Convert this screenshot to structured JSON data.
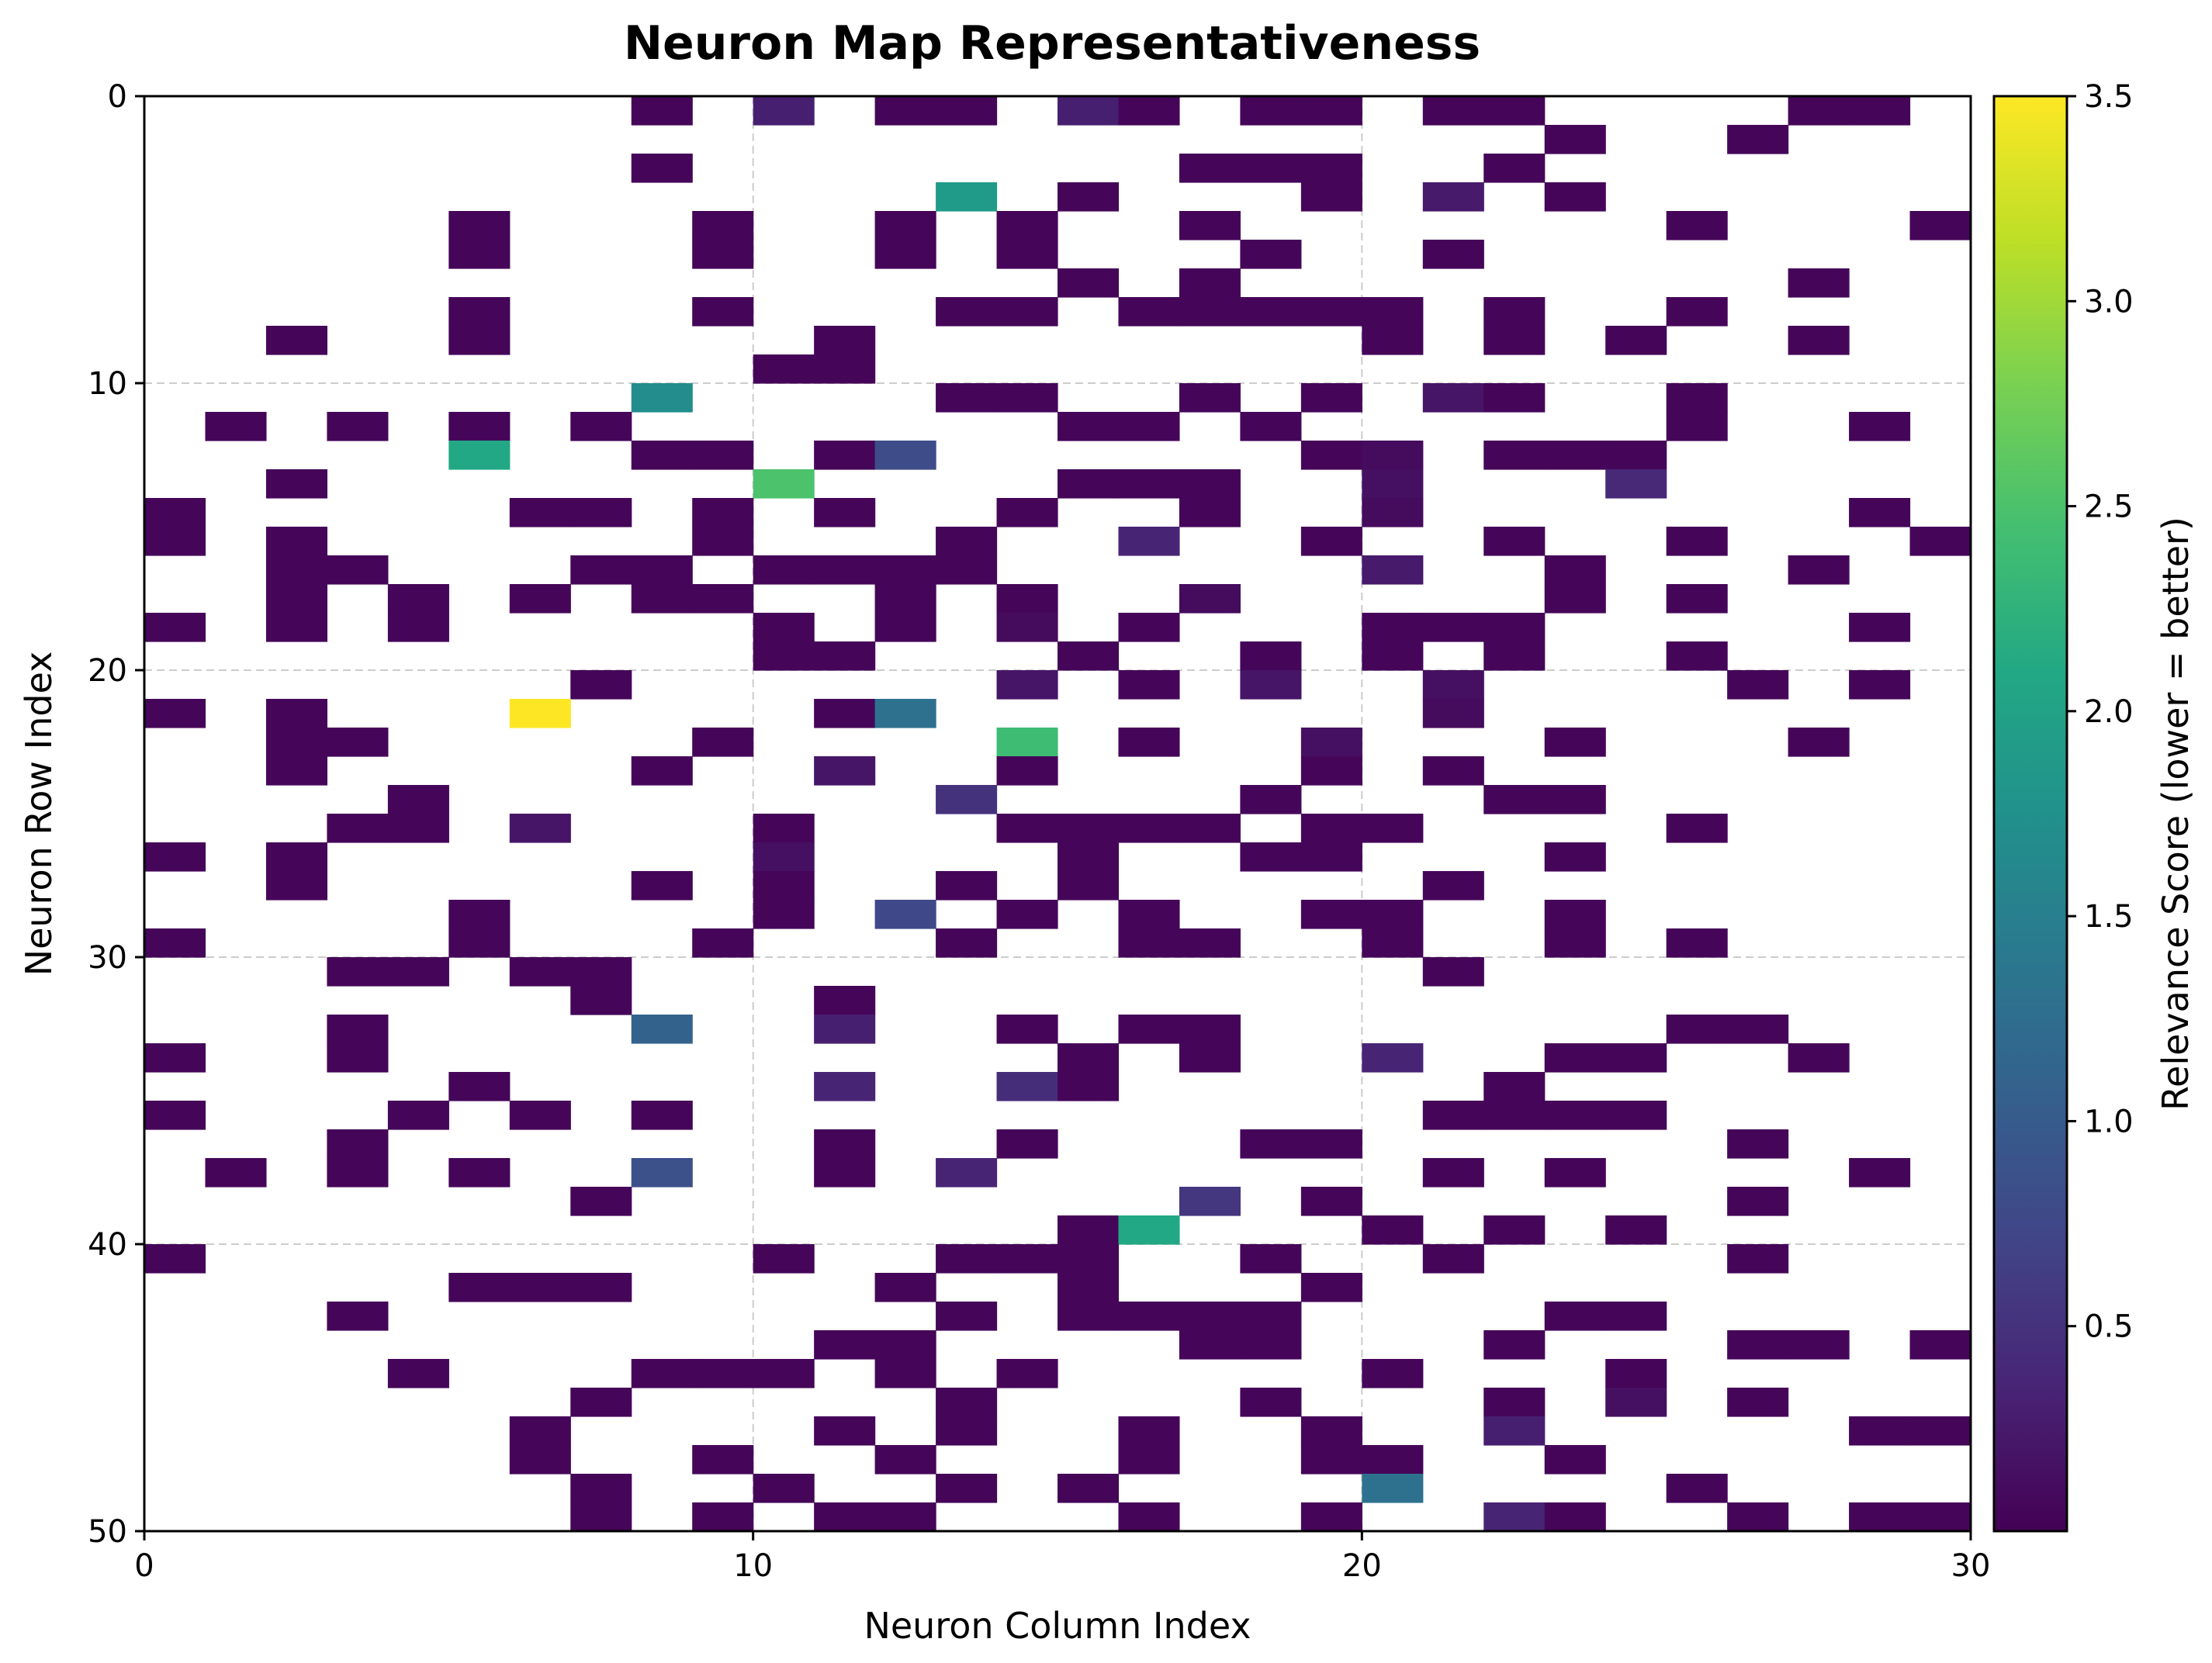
{
  "chart_data": {
    "type": "heatmap",
    "title": "Neuron Map Representativeness",
    "xlabel": "Neuron Column Index",
    "ylabel": "Neuron Row Index",
    "colorbar_label": "Relevance Score (lower = better)",
    "colormap": "viridis",
    "vmin": 0.0,
    "vmax": 3.5,
    "colorbar_ticks": [
      "0.5",
      "1.0",
      "1.5",
      "2.0",
      "2.5",
      "3.0",
      "3.5"
    ],
    "xlim": [
      0,
      30
    ],
    "ylim": [
      50,
      0
    ],
    "x_ticks": [
      "0",
      "10",
      "20",
      "30"
    ],
    "y_ticks": [
      "0",
      "10",
      "20",
      "30",
      "40",
      "50"
    ],
    "grid": true,
    "n_rows": 50,
    "n_cols": 30,
    "cells": [
      [
        0,
        8,
        0.05
      ],
      [
        0,
        10,
        0.3
      ],
      [
        0,
        12,
        0.05
      ],
      [
        0,
        13,
        0.05
      ],
      [
        0,
        15,
        0.3
      ],
      [
        0,
        16,
        0.05
      ],
      [
        0,
        18,
        0.05
      ],
      [
        0,
        19,
        0.05
      ],
      [
        0,
        21,
        0.05
      ],
      [
        0,
        22,
        0.05
      ],
      [
        0,
        27,
        0.05
      ],
      [
        0,
        28,
        0.05
      ],
      [
        1,
        23,
        0.05
      ],
      [
        1,
        26,
        0.05
      ],
      [
        2,
        8,
        0.05
      ],
      [
        2,
        17,
        0.05
      ],
      [
        2,
        18,
        0.05
      ],
      [
        2,
        19,
        0.05
      ],
      [
        2,
        22,
        0.05
      ],
      [
        3,
        13,
        1.9
      ],
      [
        3,
        15,
        0.05
      ],
      [
        3,
        19,
        0.05
      ],
      [
        3,
        21,
        0.25
      ],
      [
        3,
        23,
        0.05
      ],
      [
        4,
        5,
        0.05
      ],
      [
        4,
        9,
        0.05
      ],
      [
        4,
        12,
        0.05
      ],
      [
        4,
        14,
        0.05
      ],
      [
        4,
        17,
        0.05
      ],
      [
        4,
        25,
        0.05
      ],
      [
        4,
        29,
        0.05
      ],
      [
        5,
        5,
        0.05
      ],
      [
        5,
        9,
        0.05
      ],
      [
        5,
        12,
        0.05
      ],
      [
        5,
        14,
        0.05
      ],
      [
        5,
        18,
        0.05
      ],
      [
        5,
        21,
        0.05
      ],
      [
        6,
        15,
        0.05
      ],
      [
        6,
        17,
        0.05
      ],
      [
        6,
        27,
        0.05
      ],
      [
        7,
        5,
        0.05
      ],
      [
        7,
        9,
        0.05
      ],
      [
        7,
        13,
        0.05
      ],
      [
        7,
        14,
        0.05
      ],
      [
        7,
        16,
        0.05
      ],
      [
        7,
        17,
        0.05
      ],
      [
        7,
        18,
        0.05
      ],
      [
        7,
        19,
        0.05
      ],
      [
        7,
        20,
        0.05
      ],
      [
        7,
        22,
        0.05
      ],
      [
        7,
        25,
        0.05
      ],
      [
        8,
        2,
        0.05
      ],
      [
        8,
        5,
        0.05
      ],
      [
        8,
        11,
        0.05
      ],
      [
        8,
        20,
        0.05
      ],
      [
        8,
        22,
        0.05
      ],
      [
        8,
        24,
        0.05
      ],
      [
        8,
        27,
        0.05
      ],
      [
        9,
        10,
        0.05
      ],
      [
        9,
        11,
        0.05
      ],
      [
        10,
        8,
        1.7
      ],
      [
        10,
        13,
        0.05
      ],
      [
        10,
        14,
        0.05
      ],
      [
        10,
        17,
        0.05
      ],
      [
        10,
        19,
        0.05
      ],
      [
        10,
        21,
        0.2
      ],
      [
        10,
        22,
        0.05
      ],
      [
        10,
        25,
        0.05
      ],
      [
        11,
        1,
        0.05
      ],
      [
        11,
        3,
        0.05
      ],
      [
        11,
        5,
        0.05
      ],
      [
        11,
        7,
        0.05
      ],
      [
        11,
        15,
        0.05
      ],
      [
        11,
        16,
        0.05
      ],
      [
        11,
        18,
        0.05
      ],
      [
        11,
        25,
        0.05
      ],
      [
        11,
        28,
        0.05
      ],
      [
        12,
        5,
        2.1
      ],
      [
        12,
        8,
        0.05
      ],
      [
        12,
        9,
        0.05
      ],
      [
        12,
        11,
        0.05
      ],
      [
        12,
        12,
        0.8
      ],
      [
        12,
        19,
        0.05
      ],
      [
        12,
        20,
        0.1
      ],
      [
        12,
        22,
        0.05
      ],
      [
        12,
        23,
        0.05
      ],
      [
        12,
        24,
        0.05
      ],
      [
        13,
        2,
        0.05
      ],
      [
        13,
        10,
        2.5
      ],
      [
        13,
        15,
        0.05
      ],
      [
        13,
        16,
        0.05
      ],
      [
        13,
        17,
        0.05
      ],
      [
        13,
        20,
        0.15
      ],
      [
        13,
        24,
        0.4
      ],
      [
        14,
        0,
        0.05
      ],
      [
        14,
        6,
        0.05
      ],
      [
        14,
        7,
        0.05
      ],
      [
        14,
        9,
        0.05
      ],
      [
        14,
        11,
        0.05
      ],
      [
        14,
        14,
        0.05
      ],
      [
        14,
        17,
        0.05
      ],
      [
        14,
        20,
        0.1
      ],
      [
        14,
        28,
        0.05
      ],
      [
        15,
        0,
        0.05
      ],
      [
        15,
        2,
        0.05
      ],
      [
        15,
        9,
        0.05
      ],
      [
        15,
        13,
        0.05
      ],
      [
        15,
        16,
        0.35
      ],
      [
        15,
        19,
        0.05
      ],
      [
        15,
        22,
        0.05
      ],
      [
        15,
        25,
        0.05
      ],
      [
        15,
        29,
        0.05
      ],
      [
        16,
        2,
        0.05
      ],
      [
        16,
        3,
        0.05
      ],
      [
        16,
        7,
        0.05
      ],
      [
        16,
        8,
        0.05
      ],
      [
        16,
        10,
        0.05
      ],
      [
        16,
        11,
        0.05
      ],
      [
        16,
        12,
        0.05
      ],
      [
        16,
        13,
        0.05
      ],
      [
        16,
        20,
        0.25
      ],
      [
        16,
        23,
        0.05
      ],
      [
        16,
        27,
        0.05
      ],
      [
        17,
        2,
        0.05
      ],
      [
        17,
        4,
        0.05
      ],
      [
        17,
        6,
        0.05
      ],
      [
        17,
        8,
        0.05
      ],
      [
        17,
        9,
        0.05
      ],
      [
        17,
        12,
        0.05
      ],
      [
        17,
        14,
        0.05
      ],
      [
        17,
        17,
        0.1
      ],
      [
        17,
        23,
        0.05
      ],
      [
        17,
        25,
        0.05
      ],
      [
        18,
        0,
        0.05
      ],
      [
        18,
        2,
        0.05
      ],
      [
        18,
        4,
        0.05
      ],
      [
        18,
        10,
        0.05
      ],
      [
        18,
        12,
        0.05
      ],
      [
        18,
        14,
        0.1
      ],
      [
        18,
        16,
        0.05
      ],
      [
        18,
        20,
        0.05
      ],
      [
        18,
        21,
        0.05
      ],
      [
        18,
        22,
        0.05
      ],
      [
        18,
        28,
        0.05
      ],
      [
        19,
        10,
        0.05
      ],
      [
        19,
        11,
        0.05
      ],
      [
        19,
        15,
        0.05
      ],
      [
        19,
        18,
        0.05
      ],
      [
        19,
        20,
        0.05
      ],
      [
        19,
        22,
        0.05
      ],
      [
        19,
        25,
        0.05
      ],
      [
        20,
        7,
        0.05
      ],
      [
        20,
        14,
        0.2
      ],
      [
        20,
        16,
        0.05
      ],
      [
        20,
        18,
        0.2
      ],
      [
        20,
        21,
        0.15
      ],
      [
        20,
        26,
        0.05
      ],
      [
        20,
        28,
        0.05
      ],
      [
        21,
        0,
        0.05
      ],
      [
        21,
        2,
        0.05
      ],
      [
        21,
        6,
        3.5
      ],
      [
        21,
        11,
        0.05
      ],
      [
        21,
        12,
        1.3
      ],
      [
        21,
        21,
        0.1
      ],
      [
        22,
        2,
        0.05
      ],
      [
        22,
        3,
        0.05
      ],
      [
        22,
        9,
        0.05
      ],
      [
        22,
        14,
        2.4
      ],
      [
        22,
        16,
        0.05
      ],
      [
        22,
        19,
        0.15
      ],
      [
        22,
        23,
        0.05
      ],
      [
        22,
        27,
        0.05
      ],
      [
        23,
        2,
        0.05
      ],
      [
        23,
        8,
        0.05
      ],
      [
        23,
        11,
        0.2
      ],
      [
        23,
        14,
        0.05
      ],
      [
        23,
        19,
        0.05
      ],
      [
        23,
        21,
        0.05
      ],
      [
        24,
        4,
        0.05
      ],
      [
        24,
        13,
        0.5
      ],
      [
        24,
        18,
        0.05
      ],
      [
        24,
        22,
        0.05
      ],
      [
        24,
        23,
        0.05
      ],
      [
        25,
        3,
        0.05
      ],
      [
        25,
        4,
        0.05
      ],
      [
        25,
        6,
        0.2
      ],
      [
        25,
        10,
        0.05
      ],
      [
        25,
        14,
        0.05
      ],
      [
        25,
        15,
        0.05
      ],
      [
        25,
        16,
        0.05
      ],
      [
        25,
        17,
        0.05
      ],
      [
        25,
        19,
        0.05
      ],
      [
        25,
        20,
        0.05
      ],
      [
        25,
        25,
        0.05
      ],
      [
        26,
        0,
        0.05
      ],
      [
        26,
        2,
        0.05
      ],
      [
        26,
        10,
        0.15
      ],
      [
        26,
        15,
        0.05
      ],
      [
        26,
        18,
        0.05
      ],
      [
        26,
        19,
        0.05
      ],
      [
        26,
        23,
        0.05
      ],
      [
        27,
        2,
        0.05
      ],
      [
        27,
        8,
        0.05
      ],
      [
        27,
        10,
        0.05
      ],
      [
        27,
        13,
        0.05
      ],
      [
        27,
        15,
        0.05
      ],
      [
        27,
        21,
        0.05
      ],
      [
        28,
        5,
        0.05
      ],
      [
        28,
        10,
        0.05
      ],
      [
        28,
        12,
        0.75
      ],
      [
        28,
        14,
        0.05
      ],
      [
        28,
        16,
        0.05
      ],
      [
        28,
        19,
        0.05
      ],
      [
        28,
        20,
        0.05
      ],
      [
        28,
        23,
        0.05
      ],
      [
        29,
        0,
        0.05
      ],
      [
        29,
        5,
        0.05
      ],
      [
        29,
        9,
        0.05
      ],
      [
        29,
        13,
        0.05
      ],
      [
        29,
        16,
        0.05
      ],
      [
        29,
        17,
        0.05
      ],
      [
        29,
        20,
        0.05
      ],
      [
        29,
        23,
        0.05
      ],
      [
        29,
        25,
        0.05
      ],
      [
        30,
        3,
        0.05
      ],
      [
        30,
        4,
        0.05
      ],
      [
        30,
        6,
        0.05
      ],
      [
        30,
        7,
        0.05
      ],
      [
        30,
        21,
        0.05
      ],
      [
        31,
        7,
        0.05
      ],
      [
        31,
        11,
        0.05
      ],
      [
        32,
        3,
        0.05
      ],
      [
        32,
        8,
        1.1
      ],
      [
        32,
        11,
        0.3
      ],
      [
        32,
        14,
        0.05
      ],
      [
        32,
        16,
        0.05
      ],
      [
        32,
        17,
        0.05
      ],
      [
        32,
        25,
        0.05
      ],
      [
        32,
        26,
        0.05
      ],
      [
        33,
        0,
        0.05
      ],
      [
        33,
        3,
        0.05
      ],
      [
        33,
        15,
        0.05
      ],
      [
        33,
        17,
        0.05
      ],
      [
        33,
        20,
        0.35
      ],
      [
        33,
        23,
        0.05
      ],
      [
        33,
        24,
        0.05
      ],
      [
        33,
        27,
        0.05
      ],
      [
        34,
        5,
        0.05
      ],
      [
        34,
        11,
        0.35
      ],
      [
        34,
        14,
        0.45
      ],
      [
        34,
        15,
        0.05
      ],
      [
        34,
        22,
        0.05
      ],
      [
        35,
        0,
        0.05
      ],
      [
        35,
        4,
        0.05
      ],
      [
        35,
        6,
        0.05
      ],
      [
        35,
        8,
        0.05
      ],
      [
        35,
        21,
        0.05
      ],
      [
        35,
        22,
        0.05
      ],
      [
        35,
        23,
        0.05
      ],
      [
        35,
        24,
        0.05
      ],
      [
        36,
        3,
        0.05
      ],
      [
        36,
        11,
        0.05
      ],
      [
        36,
        14,
        0.05
      ],
      [
        36,
        18,
        0.05
      ],
      [
        36,
        19,
        0.05
      ],
      [
        36,
        26,
        0.05
      ],
      [
        37,
        1,
        0.05
      ],
      [
        37,
        3,
        0.05
      ],
      [
        37,
        5,
        0.05
      ],
      [
        37,
        8,
        0.85
      ],
      [
        37,
        11,
        0.05
      ],
      [
        37,
        13,
        0.35
      ],
      [
        37,
        21,
        0.05
      ],
      [
        37,
        23,
        0.05
      ],
      [
        37,
        28,
        0.05
      ],
      [
        38,
        7,
        0.05
      ],
      [
        38,
        17,
        0.55
      ],
      [
        38,
        19,
        0.05
      ],
      [
        38,
        26,
        0.05
      ],
      [
        39,
        15,
        0.05
      ],
      [
        39,
        16,
        2.1
      ],
      [
        39,
        20,
        0.05
      ],
      [
        39,
        22,
        0.05
      ],
      [
        39,
        24,
        0.05
      ],
      [
        40,
        0,
        0.05
      ],
      [
        40,
        10,
        0.05
      ],
      [
        40,
        13,
        0.05
      ],
      [
        40,
        14,
        0.05
      ],
      [
        40,
        15,
        0.05
      ],
      [
        40,
        18,
        0.05
      ],
      [
        40,
        21,
        0.05
      ],
      [
        40,
        26,
        0.05
      ],
      [
        41,
        5,
        0.05
      ],
      [
        41,
        6,
        0.05
      ],
      [
        41,
        7,
        0.05
      ],
      [
        41,
        12,
        0.05
      ],
      [
        41,
        15,
        0.05
      ],
      [
        41,
        19,
        0.05
      ],
      [
        42,
        3,
        0.05
      ],
      [
        42,
        13,
        0.05
      ],
      [
        42,
        15,
        0.05
      ],
      [
        42,
        16,
        0.05
      ],
      [
        42,
        17,
        0.05
      ],
      [
        42,
        18,
        0.05
      ],
      [
        42,
        23,
        0.05
      ],
      [
        42,
        24,
        0.05
      ],
      [
        43,
        11,
        0.05
      ],
      [
        43,
        12,
        0.05
      ],
      [
        43,
        17,
        0.05
      ],
      [
        43,
        18,
        0.05
      ],
      [
        43,
        22,
        0.05
      ],
      [
        43,
        26,
        0.05
      ],
      [
        43,
        27,
        0.05
      ],
      [
        43,
        29,
        0.05
      ],
      [
        44,
        4,
        0.05
      ],
      [
        44,
        8,
        0.05
      ],
      [
        44,
        9,
        0.05
      ],
      [
        44,
        10,
        0.05
      ],
      [
        44,
        12,
        0.05
      ],
      [
        44,
        14,
        0.05
      ],
      [
        44,
        20,
        0.05
      ],
      [
        44,
        24,
        0.05
      ],
      [
        45,
        7,
        0.05
      ],
      [
        45,
        13,
        0.05
      ],
      [
        45,
        18,
        0.05
      ],
      [
        45,
        22,
        0.05
      ],
      [
        45,
        24,
        0.15
      ],
      [
        45,
        26,
        0.05
      ],
      [
        46,
        6,
        0.05
      ],
      [
        46,
        11,
        0.05
      ],
      [
        46,
        13,
        0.05
      ],
      [
        46,
        16,
        0.05
      ],
      [
        46,
        19,
        0.05
      ],
      [
        46,
        22,
        0.3
      ],
      [
        46,
        28,
        0.05
      ],
      [
        46,
        29,
        0.05
      ],
      [
        47,
        6,
        0.05
      ],
      [
        47,
        9,
        0.05
      ],
      [
        47,
        12,
        0.05
      ],
      [
        47,
        16,
        0.05
      ],
      [
        47,
        19,
        0.05
      ],
      [
        47,
        20,
        0.05
      ],
      [
        47,
        23,
        0.05
      ],
      [
        48,
        7,
        0.05
      ],
      [
        48,
        10,
        0.05
      ],
      [
        48,
        13,
        0.05
      ],
      [
        48,
        15,
        0.05
      ],
      [
        48,
        20,
        1.3
      ],
      [
        48,
        25,
        0.05
      ],
      [
        49,
        7,
        0.05
      ],
      [
        49,
        9,
        0.05
      ],
      [
        49,
        11,
        0.05
      ],
      [
        49,
        12,
        0.05
      ],
      [
        49,
        16,
        0.05
      ],
      [
        49,
        19,
        0.05
      ],
      [
        49,
        22,
        0.35
      ],
      [
        49,
        23,
        0.05
      ],
      [
        49,
        26,
        0.05
      ],
      [
        49,
        28,
        0.05
      ],
      [
        49,
        29,
        0.05
      ]
    ]
  }
}
